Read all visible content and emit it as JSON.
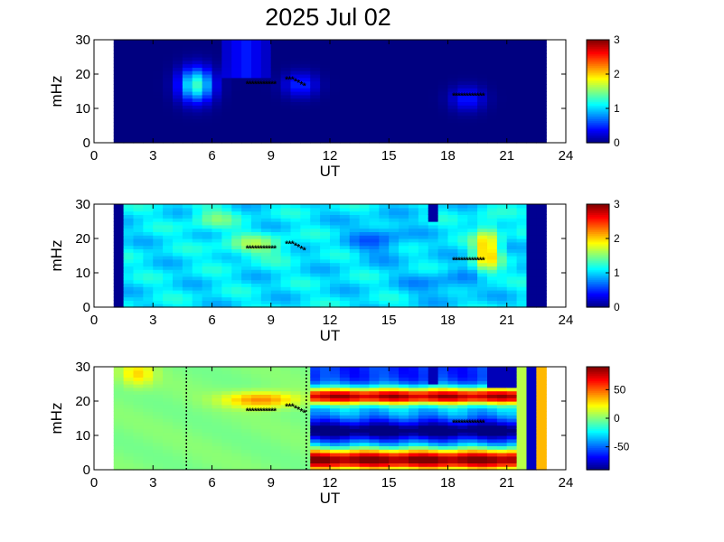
{
  "title": "2025 Jul 02",
  "chart_data": [
    {
      "type": "heatmap",
      "panel": 1,
      "xlabel": "UT",
      "ylabel": "mHz",
      "xlim": [
        0,
        24
      ],
      "ylim": [
        0,
        30
      ],
      "xticks": [
        "0",
        "3",
        "6",
        "9",
        "12",
        "15",
        "18",
        "21",
        "24"
      ],
      "yticks": [
        "0",
        "10",
        "20",
        "30"
      ],
      "data_range": [
        1,
        23
      ],
      "colorbar": {
        "range": [
          0,
          3
        ],
        "ticks": [
          "0",
          "1",
          "2",
          "3"
        ]
      },
      "features": [
        {
          "x": 5.2,
          "y": 17,
          "value": 1.3
        },
        {
          "x": 7.7,
          "y": 24,
          "value": 0.45
        },
        {
          "x": 10.5,
          "y": 17,
          "value": 0.5
        },
        {
          "x": 19.0,
          "y": 13,
          "value": 0.45
        }
      ],
      "markers": [
        {
          "x0": 7.8,
          "x1": 9.2,
          "y": 17.2
        },
        {
          "x0": 9.8,
          "x1": 10.7,
          "y": 18.5
        },
        {
          "x0": 18.3,
          "x1": 19.8,
          "y": 13.8
        }
      ]
    },
    {
      "type": "heatmap",
      "panel": 2,
      "xlabel": "UT",
      "ylabel": "mHz",
      "xlim": [
        0,
        24
      ],
      "ylim": [
        0,
        30
      ],
      "xticks": [
        "0",
        "3",
        "6",
        "9",
        "12",
        "15",
        "18",
        "21",
        "24"
      ],
      "yticks": [
        "0",
        "10",
        "20",
        "30"
      ],
      "data_range": [
        1,
        23
      ],
      "colorbar": {
        "range": [
          0,
          3
        ],
        "ticks": [
          "0",
          "1",
          "2",
          "3"
        ]
      },
      "markers": [
        {
          "x0": 7.8,
          "x1": 9.2,
          "y": 17.2
        },
        {
          "x0": 9.8,
          "x1": 10.7,
          "y": 18.5
        },
        {
          "x0": 18.3,
          "x1": 19.8,
          "y": 13.8
        }
      ]
    },
    {
      "type": "heatmap",
      "panel": 3,
      "xlabel": "UT",
      "ylabel": "mHz",
      "xlim": [
        0,
        24
      ],
      "ylim": [
        0,
        30
      ],
      "xticks": [
        "0",
        "3",
        "6",
        "9",
        "12",
        "15",
        "18",
        "21",
        "24"
      ],
      "yticks": [
        "0",
        "10",
        "20",
        "30"
      ],
      "data_range": [
        1,
        23
      ],
      "colorbar": {
        "range": [
          -90,
          90
        ],
        "ticks": [
          "50",
          "0",
          "-50"
        ],
        "tick_values": [
          50,
          0,
          -50
        ]
      },
      "vlines": [
        4.7,
        10.8
      ],
      "markers": [
        {
          "x0": 7.8,
          "x1": 9.2,
          "y": 17.2
        },
        {
          "x0": 9.8,
          "x1": 10.7,
          "y": 18.5
        },
        {
          "x0": 18.3,
          "x1": 19.8,
          "y": 13.8
        }
      ]
    }
  ]
}
